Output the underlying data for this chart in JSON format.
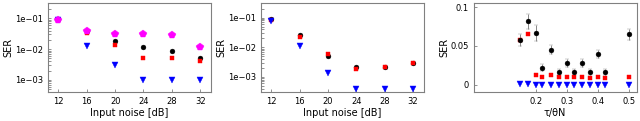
{
  "panel1": {
    "xlabel": "Input noise [dB]",
    "ylabel": "SER",
    "x": [
      12,
      16,
      20,
      24,
      28,
      32
    ],
    "black_circle": [
      0.095,
      0.04,
      0.018,
      0.012,
      0.009,
      0.005
    ],
    "red_square": [
      0.09,
      0.033,
      0.014,
      0.005,
      0.005,
      0.004
    ],
    "blue_triangle": [
      0.085,
      0.013,
      0.003,
      0.001,
      0.001,
      0.001
    ],
    "magenta_star": [
      0.088,
      0.038,
      0.03,
      0.03,
      0.028,
      0.012
    ],
    "ylim": [
      0.0004,
      0.3
    ]
  },
  "panel2": {
    "xlabel": "Input noise [dB]",
    "ylabel": "SER",
    "x": [
      12,
      16,
      20,
      24,
      28,
      32
    ],
    "black_circle": [
      0.09,
      0.025,
      0.005,
      0.0022,
      0.0022,
      0.003
    ],
    "red_square": [
      0.08,
      0.022,
      0.006,
      0.0018,
      0.0022,
      0.003
    ],
    "blue_triangle": [
      0.075,
      0.011,
      0.0013,
      0.0004,
      0.0004,
      0.0004
    ],
    "ylim": [
      0.0003,
      0.3
    ]
  },
  "panel3": {
    "xlabel": "τ/θN",
    "ylabel": "SER",
    "x": [
      0.15,
      0.175,
      0.2,
      0.22,
      0.25,
      0.275,
      0.3,
      0.325,
      0.35,
      0.375,
      0.4,
      0.425,
      0.5
    ],
    "black_circle": [
      0.058,
      0.082,
      0.067,
      0.022,
      0.045,
      0.016,
      0.028,
      0.016,
      0.028,
      0.016,
      0.04,
      0.016,
      0.065
    ],
    "black_err": [
      0.008,
      0.01,
      0.01,
      0.005,
      0.006,
      0.004,
      0.005,
      0.004,
      0.005,
      0.004,
      0.005,
      0.004,
      0.007
    ],
    "red_square": [
      0.058,
      0.065,
      0.013,
      0.01,
      0.013,
      0.01,
      0.01,
      0.01,
      0.01,
      0.008,
      0.01,
      0.008,
      0.01
    ],
    "blue_triangle": [
      0.001,
      0.001,
      0.0,
      0.0,
      0.0,
      0.0,
      0.0,
      0.0,
      0.0,
      0.0,
      0.0,
      0.0,
      0.0
    ],
    "ylim": [
      -0.01,
      0.105
    ],
    "yticks": [
      0.0,
      0.05,
      0.1
    ]
  },
  "colors": {
    "black": "#000000",
    "red": "#ff0000",
    "blue": "#0000ff",
    "magenta": "#ff00ff"
  },
  "figsize": [
    6.4,
    1.21
  ],
  "dpi": 100
}
